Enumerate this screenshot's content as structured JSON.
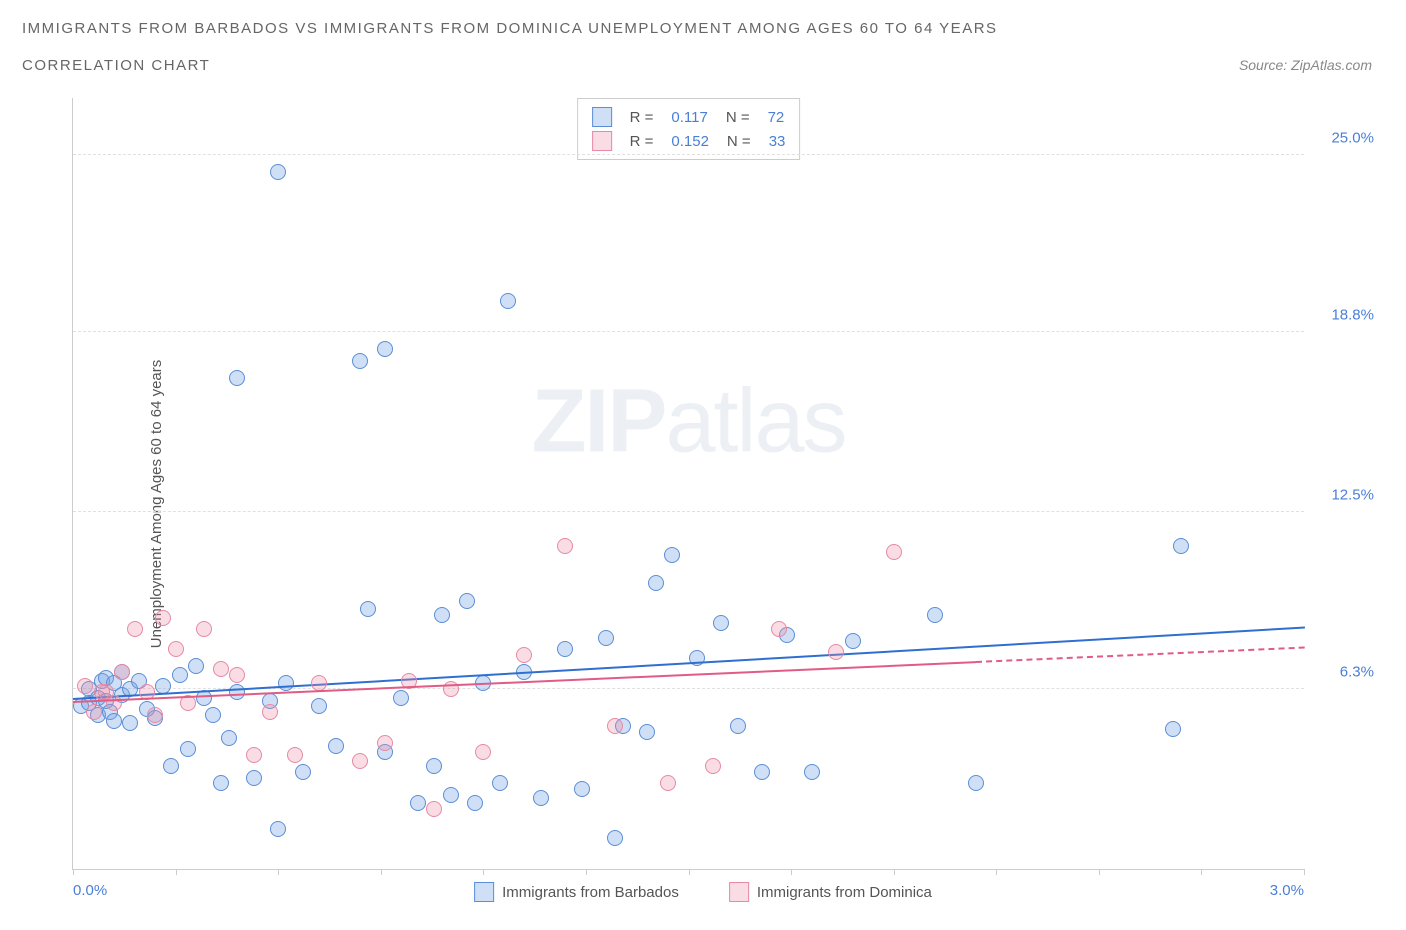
{
  "title": "IMMIGRANTS FROM BARBADOS VS IMMIGRANTS FROM DOMINICA UNEMPLOYMENT AMONG AGES 60 TO 64 YEARS",
  "subtitle": "CORRELATION CHART",
  "source": "Source: ZipAtlas.com",
  "ylabel": "Unemployment Among Ages 60 to 64 years",
  "watermark_a": "ZIP",
  "watermark_b": "atlas",
  "chart": {
    "type": "scatter",
    "xlim": [
      0.0,
      3.0
    ],
    "ylim": [
      0.0,
      27.0
    ],
    "x_ticks_count": 12,
    "x_min_label": "0.0%",
    "x_max_label": "3.0%",
    "y_ticks": [
      {
        "v": 6.3,
        "label": "6.3%"
      },
      {
        "v": 12.5,
        "label": "12.5%"
      },
      {
        "v": 18.8,
        "label": "18.8%"
      },
      {
        "v": 25.0,
        "label": "25.0%"
      }
    ],
    "grid_color": "#e0e0e0",
    "axis_color": "#cccccc",
    "background_color": "#ffffff",
    "label_color": "#4a7fd8",
    "text_color": "#555555",
    "marker_radius": 8,
    "series": [
      {
        "name": "Immigrants from Barbados",
        "fill": "rgba(116,163,230,0.35)",
        "stroke": "#5b8ed6",
        "trend_color": "#2f6fd0",
        "R": "0.117",
        "N": "72",
        "trend": {
          "x1": 0.0,
          "y1": 6.0,
          "x2": 3.0,
          "y2": 8.5,
          "solid_to_x": 3.0
        },
        "points": [
          [
            0.02,
            5.7
          ],
          [
            0.04,
            6.3
          ],
          [
            0.04,
            5.8
          ],
          [
            0.06,
            6.0
          ],
          [
            0.06,
            5.4
          ],
          [
            0.07,
            6.6
          ],
          [
            0.08,
            5.9
          ],
          [
            0.08,
            6.7
          ],
          [
            0.09,
            5.5
          ],
          [
            0.1,
            6.5
          ],
          [
            0.1,
            5.2
          ],
          [
            0.12,
            6.1
          ],
          [
            0.12,
            6.9
          ],
          [
            0.14,
            6.3
          ],
          [
            0.14,
            5.1
          ],
          [
            0.16,
            6.6
          ],
          [
            0.18,
            5.6
          ],
          [
            0.2,
            5.3
          ],
          [
            0.22,
            6.4
          ],
          [
            0.24,
            3.6
          ],
          [
            0.26,
            6.8
          ],
          [
            0.28,
            4.2
          ],
          [
            0.3,
            7.1
          ],
          [
            0.32,
            6.0
          ],
          [
            0.34,
            5.4
          ],
          [
            0.36,
            3.0
          ],
          [
            0.38,
            4.6
          ],
          [
            0.4,
            17.2
          ],
          [
            0.4,
            6.2
          ],
          [
            0.44,
            3.2
          ],
          [
            0.48,
            5.9
          ],
          [
            0.5,
            24.4
          ],
          [
            0.5,
            1.4
          ],
          [
            0.52,
            6.5
          ],
          [
            0.56,
            3.4
          ],
          [
            0.6,
            5.7
          ],
          [
            0.64,
            4.3
          ],
          [
            0.7,
            17.8
          ],
          [
            0.72,
            9.1
          ],
          [
            0.76,
            18.2
          ],
          [
            0.76,
            4.1
          ],
          [
            0.8,
            6.0
          ],
          [
            0.84,
            2.3
          ],
          [
            0.88,
            3.6
          ],
          [
            0.9,
            8.9
          ],
          [
            0.92,
            2.6
          ],
          [
            0.96,
            9.4
          ],
          [
            0.98,
            2.3
          ],
          [
            1.0,
            6.5
          ],
          [
            1.04,
            3.0
          ],
          [
            1.06,
            19.9
          ],
          [
            1.1,
            6.9
          ],
          [
            1.14,
            2.5
          ],
          [
            1.2,
            7.7
          ],
          [
            1.24,
            2.8
          ],
          [
            1.3,
            8.1
          ],
          [
            1.32,
            1.1
          ],
          [
            1.34,
            5.0
          ],
          [
            1.4,
            4.8
          ],
          [
            1.42,
            10.0
          ],
          [
            1.46,
            11.0
          ],
          [
            1.52,
            7.4
          ],
          [
            1.58,
            8.6
          ],
          [
            1.62,
            5.0
          ],
          [
            1.68,
            3.4
          ],
          [
            1.74,
            8.2
          ],
          [
            1.8,
            3.4
          ],
          [
            1.9,
            8.0
          ],
          [
            2.1,
            8.9
          ],
          [
            2.2,
            3.0
          ],
          [
            2.68,
            4.9
          ],
          [
            2.7,
            11.3
          ]
        ]
      },
      {
        "name": "Immigrants from Dominica",
        "fill": "rgba(235,140,165,0.30)",
        "stroke": "#e68aa5",
        "trend_color": "#e05c85",
        "R": "0.152",
        "N": "33",
        "trend": {
          "x1": 0.0,
          "y1": 5.9,
          "x2": 3.0,
          "y2": 7.8,
          "solid_to_x": 2.2
        },
        "points": [
          [
            0.03,
            6.4
          ],
          [
            0.05,
            5.5
          ],
          [
            0.07,
            6.2
          ],
          [
            0.08,
            6.2
          ],
          [
            0.1,
            5.8
          ],
          [
            0.12,
            6.9
          ],
          [
            0.15,
            8.4
          ],
          [
            0.18,
            6.2
          ],
          [
            0.2,
            5.4
          ],
          [
            0.22,
            8.8
          ],
          [
            0.25,
            7.7
          ],
          [
            0.28,
            5.8
          ],
          [
            0.32,
            8.4
          ],
          [
            0.36,
            7.0
          ],
          [
            0.4,
            6.8
          ],
          [
            0.44,
            4.0
          ],
          [
            0.48,
            5.5
          ],
          [
            0.54,
            4.0
          ],
          [
            0.6,
            6.5
          ],
          [
            0.7,
            3.8
          ],
          [
            0.76,
            4.4
          ],
          [
            0.82,
            6.6
          ],
          [
            0.88,
            2.1
          ],
          [
            0.92,
            6.3
          ],
          [
            1.0,
            4.1
          ],
          [
            1.1,
            7.5
          ],
          [
            1.2,
            11.3
          ],
          [
            1.32,
            5.0
          ],
          [
            1.45,
            3.0
          ],
          [
            1.56,
            3.6
          ],
          [
            1.72,
            8.4
          ],
          [
            1.86,
            7.6
          ],
          [
            2.0,
            11.1
          ]
        ]
      }
    ],
    "stats_labels": {
      "R": "R =",
      "N": "N ="
    }
  }
}
